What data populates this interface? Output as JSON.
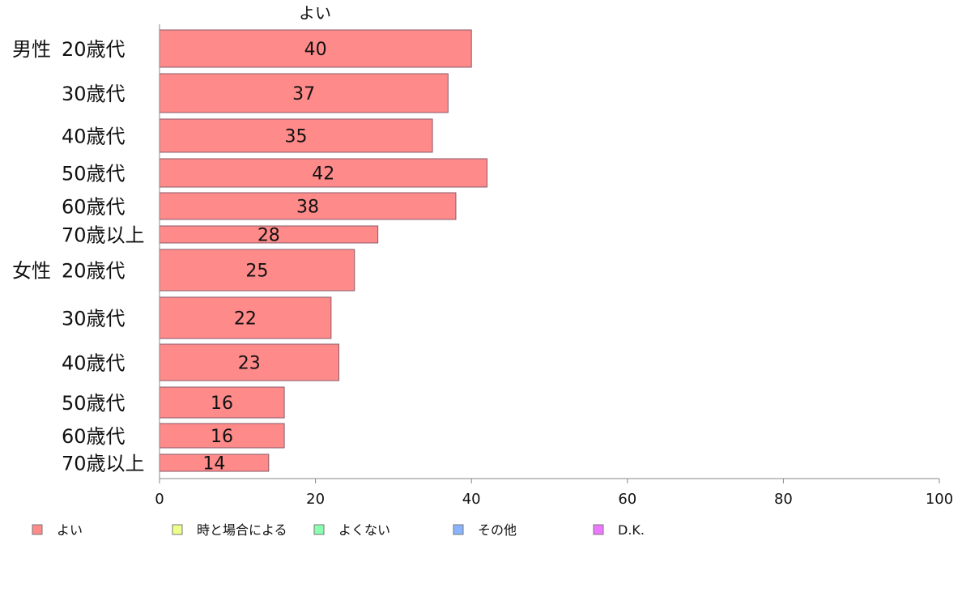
{
  "chart_data": {
    "type": "bar",
    "orientation": "horizontal",
    "title": "よい",
    "groups": [
      {
        "label": "男性",
        "categories": [
          "20歳代",
          "30歳代",
          "40歳代",
          "50歳代",
          "60歳代",
          "70歳以上"
        ],
        "values": [
          40,
          37,
          35,
          42,
          38,
          28
        ]
      },
      {
        "label": "女性",
        "categories": [
          "20歳代",
          "30歳代",
          "40歳代",
          "50歳代",
          "60歳代",
          "70歳以上"
        ],
        "values": [
          25,
          22,
          23,
          16,
          16,
          14
        ]
      }
    ],
    "series": [
      {
        "name": "よい",
        "color": "#ff8a8a"
      }
    ],
    "legend": [
      {
        "name": "よい",
        "color": "#ff8a8a"
      },
      {
        "name": "時と場合による",
        "color": "#eeff8a"
      },
      {
        "name": "よくない",
        "color": "#8affb0"
      },
      {
        "name": "その他",
        "color": "#8ab4ff"
      },
      {
        "name": "D.K.",
        "color": "#ee77ff"
      }
    ],
    "xlim": [
      0,
      100
    ],
    "xticks": [
      0,
      20,
      40,
      60,
      80,
      100
    ],
    "legend_position": "bottom",
    "grid": false
  }
}
